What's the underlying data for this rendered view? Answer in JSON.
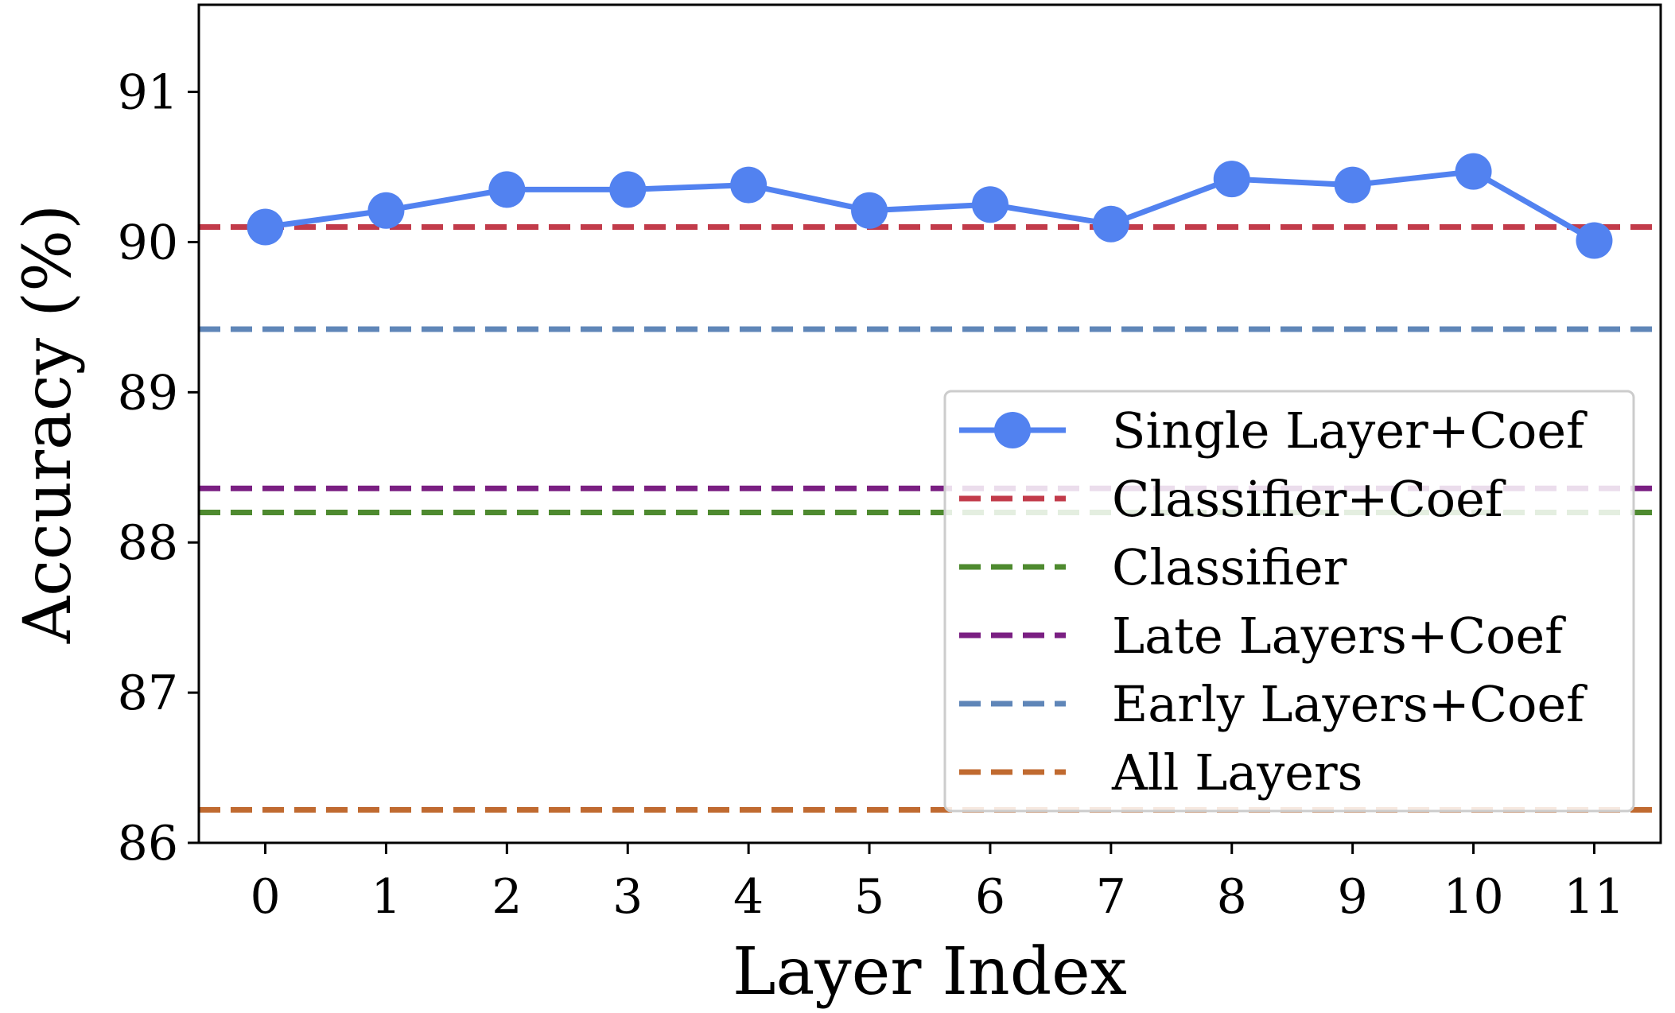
{
  "chart_data": {
    "type": "line",
    "title": "",
    "xlabel": "Layer Index",
    "ylabel": "Accuracy (%)",
    "x": [
      0,
      1,
      2,
      3,
      4,
      5,
      6,
      7,
      8,
      9,
      10,
      11
    ],
    "x_ticks": [
      "0",
      "1",
      "2",
      "3",
      "4",
      "5",
      "6",
      "7",
      "8",
      "9",
      "10",
      "11"
    ],
    "y_ticks": [
      "86",
      "87",
      "88",
      "89",
      "90",
      "91"
    ],
    "xlim": [
      -0.55,
      11.55
    ],
    "ylim": [
      86.0,
      91.58
    ],
    "grid": false,
    "legend_position": "lower-right",
    "series": [
      {
        "name": "Single Layer+Coef",
        "kind": "line-marker",
        "color": "#5282f0",
        "values": [
          90.1,
          90.21,
          90.35,
          90.35,
          90.38,
          90.21,
          90.25,
          90.12,
          90.42,
          90.38,
          90.47,
          90.01
        ]
      }
    ],
    "reference_lines": [
      {
        "name": "Classifier+Coef",
        "value": 90.1,
        "color": "#c23b4a"
      },
      {
        "name": "Classifier",
        "value": 88.2,
        "color": "#4e8a2f"
      },
      {
        "name": "Late Layers+Coef",
        "value": 88.36,
        "color": "#7a1f82"
      },
      {
        "name": "Early Layers+Coef",
        "value": 89.42,
        "color": "#5f86b8"
      },
      {
        "name": "All Layers",
        "value": 86.22,
        "color": "#c06a30"
      }
    ]
  }
}
